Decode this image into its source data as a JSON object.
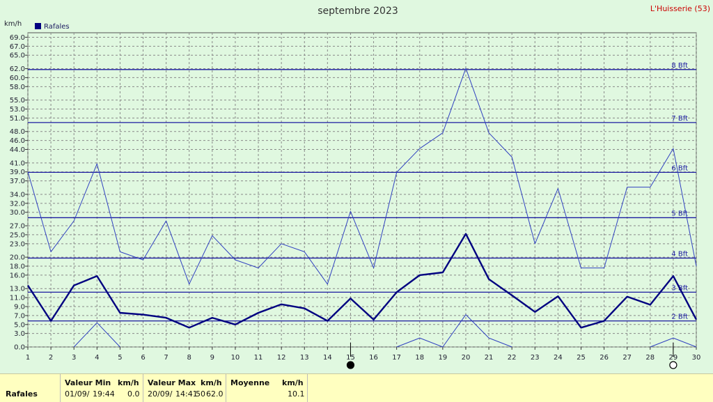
{
  "chart_data": {
    "type": "line",
    "title": "septembre 2023",
    "station": "L'Huisserie (53)",
    "ylabel": "km/h",
    "ylim": [
      0,
      70
    ],
    "x": [
      1,
      2,
      3,
      4,
      5,
      6,
      7,
      8,
      9,
      10,
      11,
      12,
      13,
      14,
      15,
      16,
      17,
      18,
      19,
      20,
      21,
      22,
      23,
      24,
      25,
      26,
      27,
      28,
      29,
      30
    ],
    "yticks": [
      "0.0",
      "3.0",
      "5.0",
      "7.0",
      "9.0",
      "11.0",
      "13.0",
      "16.0",
      "18.0",
      "20.0",
      "23.0",
      "25.0",
      "27.0",
      "30.0",
      "32.0",
      "34.0",
      "37.0",
      "39.0",
      "41.0",
      "44.0",
      "46.0",
      "48.0",
      "51.0",
      "53.0",
      "55.0",
      "58.0",
      "60.0",
      "62.0",
      "65.0",
      "67.0",
      "69.0"
    ],
    "legend": [
      "Rafales"
    ],
    "grid": true,
    "series": [
      {
        "name": "Rafales",
        "role": "mean",
        "color": "#000080",
        "values": [
          13.7,
          5.8,
          13.7,
          15.8,
          7.6,
          7.2,
          6.5,
          4.3,
          6.5,
          5,
          7.6,
          9.5,
          8.6,
          5.8,
          10.8,
          6.1,
          12.2,
          16,
          16.6,
          25.2,
          15.1,
          11.5,
          7.8,
          11.3,
          4.3,
          5.8,
          11.2,
          9.4,
          15.8,
          6.1
        ]
      },
      {
        "name": "max",
        "role": "max",
        "color": "#3040c0",
        "values": [
          39,
          21.2,
          28.1,
          40.8,
          21.2,
          19.4,
          28.1,
          14,
          24.8,
          19.4,
          17.6,
          23,
          21.2,
          14,
          30.2,
          17.6,
          38.9,
          44.2,
          47.7,
          62.1,
          47.7,
          42.3,
          23,
          35.3,
          17.6,
          17.6,
          35.6,
          35.6,
          44.2,
          18
        ]
      },
      {
        "name": "min",
        "role": "min",
        "color": "#3040c0",
        "values": [
          null,
          null,
          0,
          5.4,
          0,
          null,
          null,
          null,
          null,
          null,
          null,
          null,
          null,
          null,
          null,
          null,
          0,
          2,
          0,
          7.2,
          2,
          0,
          null,
          null,
          null,
          null,
          null,
          0,
          2,
          0
        ]
      }
    ],
    "beaufort": [
      {
        "label": "2 Bft",
        "value": 5.8
      },
      {
        "label": "3 Bft",
        "value": 12.2
      },
      {
        "label": "4 Bft",
        "value": 19.8
      },
      {
        "label": "5 Bft",
        "value": 28.8
      },
      {
        "label": "6 Bft",
        "value": 38.9
      },
      {
        "label": "7 Bft",
        "value": 50
      },
      {
        "label": "8 Bft",
        "value": 61.8
      }
    ],
    "moon": [
      {
        "day": 15,
        "phase": "new"
      },
      {
        "day": 29,
        "phase": "full"
      }
    ]
  },
  "stats": {
    "series_label": "Rafales",
    "min_header": "Valeur Min",
    "min_unit": "km/h",
    "min_date": "01/09/",
    "min_time": "19:44",
    "min_value": "0.0",
    "max_header": "Valeur Max",
    "max_unit": "km/h",
    "max_date": "20/09/",
    "max_time": "14:41",
    "max_value": "62.0",
    "max_extra": "50",
    "mean_header": "Moyenne",
    "mean_unit": "km/h",
    "mean_value": "10.1"
  }
}
